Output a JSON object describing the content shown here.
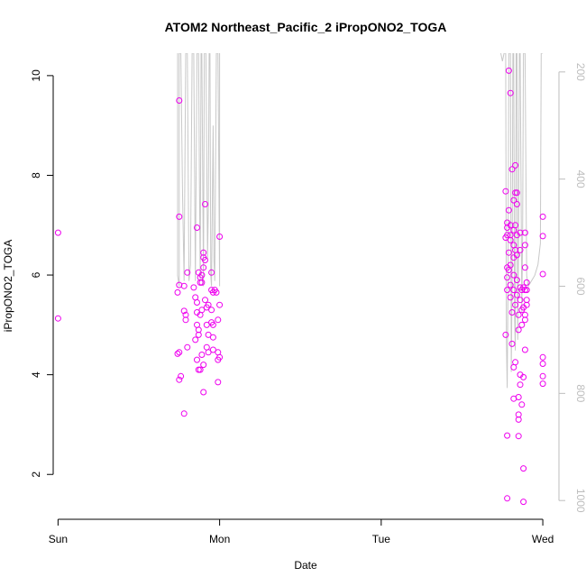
{
  "chart_data": {
    "type": "scatter",
    "title": "ATOM2 Northeast_Pacific_2 iPropONO2_TOGA",
    "xlabel": "Date",
    "ylabel": "iPropONO2_TOGA",
    "x_ticks": [
      "Sun",
      "Mon",
      "Tue",
      "Wed"
    ],
    "x_range_days": [
      -0.03,
      3.1
    ],
    "ylim": [
      1.1,
      10.45
    ],
    "y_ticks": [
      2,
      4,
      6,
      8,
      10
    ],
    "right_axis": {
      "ticks": [
        200,
        400,
        600,
        800,
        1000
      ],
      "range": [
        1035,
        165
      ],
      "color": "#bdbdbd"
    },
    "point_color": "#ee00ee",
    "line_color": "#c8c8c8",
    "points": [
      {
        "x": 0.0,
        "y": 6.85
      },
      {
        "x": 0.0,
        "y": 5.13
      },
      {
        "x": 0.75,
        "y": 9.5
      },
      {
        "x": 0.75,
        "y": 7.17
      },
      {
        "x": 0.74,
        "y": 5.65
      },
      {
        "x": 0.75,
        "y": 5.8
      },
      {
        "x": 0.75,
        "y": 4.45
      },
      {
        "x": 0.76,
        "y": 3.97
      },
      {
        "x": 0.75,
        "y": 3.9
      },
      {
        "x": 0.74,
        "y": 4.42
      },
      {
        "x": 0.78,
        "y": 3.22
      },
      {
        "x": 0.78,
        "y": 5.28
      },
      {
        "x": 0.79,
        "y": 5.1
      },
      {
        "x": 0.79,
        "y": 5.2
      },
      {
        "x": 0.8,
        "y": 6.05
      },
      {
        "x": 0.8,
        "y": 4.55
      },
      {
        "x": 0.78,
        "y": 5.78
      },
      {
        "x": 0.84,
        "y": 5.75
      },
      {
        "x": 0.85,
        "y": 5.55
      },
      {
        "x": 0.86,
        "y": 5.45
      },
      {
        "x": 0.86,
        "y": 5.25
      },
      {
        "x": 0.86,
        "y": 5.0
      },
      {
        "x": 0.85,
        "y": 4.7
      },
      {
        "x": 0.86,
        "y": 4.3
      },
      {
        "x": 0.87,
        "y": 4.1
      },
      {
        "x": 0.88,
        "y": 4.1
      },
      {
        "x": 0.86,
        "y": 6.95
      },
      {
        "x": 0.87,
        "y": 6.05
      },
      {
        "x": 0.88,
        "y": 5.95
      },
      {
        "x": 0.88,
        "y": 5.85
      },
      {
        "x": 0.89,
        "y": 5.85
      },
      {
        "x": 0.89,
        "y": 5.3
      },
      {
        "x": 0.88,
        "y": 5.2
      },
      {
        "x": 0.87,
        "y": 4.9
      },
      {
        "x": 0.87,
        "y": 4.8
      },
      {
        "x": 0.89,
        "y": 4.4
      },
      {
        "x": 0.9,
        "y": 4.2
      },
      {
        "x": 0.9,
        "y": 3.65
      },
      {
        "x": 0.89,
        "y": 6.0
      },
      {
        "x": 0.9,
        "y": 6.45
      },
      {
        "x": 0.9,
        "y": 6.35
      },
      {
        "x": 0.91,
        "y": 6.3
      },
      {
        "x": 0.9,
        "y": 6.15
      },
      {
        "x": 0.91,
        "y": 7.42
      },
      {
        "x": 0.91,
        "y": 5.5
      },
      {
        "x": 0.92,
        "y": 5.35
      },
      {
        "x": 0.93,
        "y": 5.4
      },
      {
        "x": 0.92,
        "y": 5.0
      },
      {
        "x": 0.93,
        "y": 4.8
      },
      {
        "x": 0.92,
        "y": 4.55
      },
      {
        "x": 0.93,
        "y": 4.45
      },
      {
        "x": 0.95,
        "y": 6.05
      },
      {
        "x": 0.95,
        "y": 5.7
      },
      {
        "x": 0.96,
        "y": 5.65
      },
      {
        "x": 0.95,
        "y": 5.3
      },
      {
        "x": 0.95,
        "y": 5.05
      },
      {
        "x": 0.96,
        "y": 5.0
      },
      {
        "x": 0.96,
        "y": 4.75
      },
      {
        "x": 0.96,
        "y": 4.5
      },
      {
        "x": 0.97,
        "y": 5.7
      },
      {
        "x": 0.98,
        "y": 5.65
      },
      {
        "x": 0.99,
        "y": 5.1
      },
      {
        "x": 0.99,
        "y": 4.45
      },
      {
        "x": 0.99,
        "y": 4.3
      },
      {
        "x": 1.0,
        "y": 4.35
      },
      {
        "x": 0.99,
        "y": 3.85
      },
      {
        "x": 1.0,
        "y": 6.77
      },
      {
        "x": 1.0,
        "y": 5.4
      },
      {
        "x": 2.77,
        "y": 7.68
      },
      {
        "x": 2.78,
        "y": 7.05
      },
      {
        "x": 2.78,
        "y": 6.95
      },
      {
        "x": 2.78,
        "y": 6.8
      },
      {
        "x": 2.77,
        "y": 6.75
      },
      {
        "x": 2.78,
        "y": 6.15
      },
      {
        "x": 2.78,
        "y": 5.95
      },
      {
        "x": 2.78,
        "y": 5.7
      },
      {
        "x": 2.77,
        "y": 4.8
      },
      {
        "x": 2.78,
        "y": 2.78
      },
      {
        "x": 2.78,
        "y": 1.52
      },
      {
        "x": 2.79,
        "y": 10.1
      },
      {
        "x": 2.79,
        "y": 7.3
      },
      {
        "x": 2.8,
        "y": 9.65
      },
      {
        "x": 2.8,
        "y": 7.0
      },
      {
        "x": 2.8,
        "y": 6.8
      },
      {
        "x": 2.8,
        "y": 6.7
      },
      {
        "x": 2.79,
        "y": 6.45
      },
      {
        "x": 2.8,
        "y": 6.2
      },
      {
        "x": 2.79,
        "y": 6.1
      },
      {
        "x": 2.8,
        "y": 5.8
      },
      {
        "x": 2.8,
        "y": 5.55
      },
      {
        "x": 2.81,
        "y": 5.25
      },
      {
        "x": 2.81,
        "y": 8.12
      },
      {
        "x": 2.82,
        "y": 7.5
      },
      {
        "x": 2.82,
        "y": 6.9
      },
      {
        "x": 2.82,
        "y": 6.6
      },
      {
        "x": 2.82,
        "y": 6.35
      },
      {
        "x": 2.82,
        "y": 6.0
      },
      {
        "x": 2.82,
        "y": 5.7
      },
      {
        "x": 2.81,
        "y": 4.62
      },
      {
        "x": 2.82,
        "y": 4.15
      },
      {
        "x": 2.82,
        "y": 3.52
      },
      {
        "x": 2.83,
        "y": 8.2
      },
      {
        "x": 2.83,
        "y": 7.65
      },
      {
        "x": 2.84,
        "y": 7.65
      },
      {
        "x": 2.83,
        "y": 7.0
      },
      {
        "x": 2.84,
        "y": 6.8
      },
      {
        "x": 2.83,
        "y": 6.5
      },
      {
        "x": 2.84,
        "y": 6.4
      },
      {
        "x": 2.84,
        "y": 5.9
      },
      {
        "x": 2.84,
        "y": 5.6
      },
      {
        "x": 2.83,
        "y": 5.4
      },
      {
        "x": 2.83,
        "y": 4.25
      },
      {
        "x": 2.84,
        "y": 7.42
      },
      {
        "x": 2.85,
        "y": 5.2
      },
      {
        "x": 2.85,
        "y": 4.9
      },
      {
        "x": 2.85,
        "y": 3.55
      },
      {
        "x": 2.85,
        "y": 3.2
      },
      {
        "x": 2.85,
        "y": 3.1
      },
      {
        "x": 2.85,
        "y": 2.77
      },
      {
        "x": 2.86,
        "y": 6.85
      },
      {
        "x": 2.86,
        "y": 6.5
      },
      {
        "x": 2.86,
        "y": 5.75
      },
      {
        "x": 2.86,
        "y": 5.5
      },
      {
        "x": 2.86,
        "y": 4.0
      },
      {
        "x": 2.86,
        "y": 3.8
      },
      {
        "x": 2.87,
        "y": 5.7
      },
      {
        "x": 2.87,
        "y": 5.3
      },
      {
        "x": 2.87,
        "y": 5.0
      },
      {
        "x": 2.87,
        "y": 3.4
      },
      {
        "x": 2.88,
        "y": 5.75
      },
      {
        "x": 2.88,
        "y": 5.35
      },
      {
        "x": 2.88,
        "y": 3.95
      },
      {
        "x": 2.88,
        "y": 2.12
      },
      {
        "x": 2.88,
        "y": 1.45
      },
      {
        "x": 2.89,
        "y": 6.85
      },
      {
        "x": 2.89,
        "y": 6.6
      },
      {
        "x": 2.89,
        "y": 6.15
      },
      {
        "x": 2.89,
        "y": 5.7
      },
      {
        "x": 2.89,
        "y": 5.2
      },
      {
        "x": 2.89,
        "y": 5.1
      },
      {
        "x": 2.89,
        "y": 4.5
      },
      {
        "x": 2.9,
        "y": 5.85
      },
      {
        "x": 2.9,
        "y": 5.7
      },
      {
        "x": 2.9,
        "y": 5.5
      },
      {
        "x": 2.9,
        "y": 5.4
      },
      {
        "x": 3.0,
        "y": 7.17
      },
      {
        "x": 3.0,
        "y": 6.78
      },
      {
        "x": 3.0,
        "y": 6.02
      },
      {
        "x": 3.0,
        "y": 4.35
      },
      {
        "x": 3.0,
        "y": 4.22
      },
      {
        "x": 3.0,
        "y": 3.97
      },
      {
        "x": 3.0,
        "y": 3.82
      }
    ],
    "altitude_trace": [
      [
        0.74,
        165
      ],
      [
        0.74,
        580
      ],
      [
        0.75,
        600
      ],
      [
        0.75,
        165
      ],
      [
        0.76,
        165
      ],
      [
        0.77,
        420
      ],
      [
        0.78,
        590
      ],
      [
        0.79,
        165
      ],
      [
        0.8,
        165
      ],
      [
        0.81,
        590
      ],
      [
        0.82,
        560
      ],
      [
        0.83,
        165
      ],
      [
        0.84,
        165
      ],
      [
        0.85,
        590
      ],
      [
        0.86,
        165
      ],
      [
        0.87,
        165
      ],
      [
        0.875,
        400
      ],
      [
        0.88,
        590
      ],
      [
        0.885,
        165
      ],
      [
        0.89,
        165
      ],
      [
        0.9,
        600
      ],
      [
        0.905,
        165
      ],
      [
        0.915,
        165
      ],
      [
        0.925,
        550
      ],
      [
        0.93,
        450
      ],
      [
        0.935,
        165
      ],
      [
        0.94,
        165
      ],
      [
        0.945,
        580
      ],
      [
        0.95,
        600
      ],
      [
        0.96,
        300
      ],
      [
        0.965,
        550
      ],
      [
        0.97,
        590
      ],
      [
        0.98,
        165
      ],
      [
        0.99,
        165
      ],
      [
        1.0,
        600
      ],
      [
        1.0,
        165
      ],
      [
        2.74,
        165
      ],
      [
        2.75,
        180
      ],
      [
        2.76,
        165
      ],
      [
        2.77,
        165
      ],
      [
        2.775,
        700
      ],
      [
        2.78,
        790
      ],
      [
        2.785,
        600
      ],
      [
        2.79,
        165
      ],
      [
        2.8,
        165
      ],
      [
        2.805,
        760
      ],
      [
        2.81,
        600
      ],
      [
        2.815,
        165
      ],
      [
        2.82,
        165
      ],
      [
        2.825,
        650
      ],
      [
        2.83,
        720
      ],
      [
        2.835,
        165
      ],
      [
        2.84,
        165
      ],
      [
        2.845,
        700
      ],
      [
        2.85,
        500
      ],
      [
        2.855,
        165
      ],
      [
        2.86,
        165
      ],
      [
        2.87,
        650
      ],
      [
        2.875,
        500
      ],
      [
        2.88,
        165
      ],
      [
        2.89,
        165
      ],
      [
        2.9,
        580
      ],
      [
        2.91,
        600
      ],
      [
        2.93,
        590
      ],
      [
        2.95,
        580
      ],
      [
        2.97,
        560
      ],
      [
        2.985,
        520
      ],
      [
        2.99,
        165
      ],
      [
        3.0,
        165
      ]
    ]
  }
}
